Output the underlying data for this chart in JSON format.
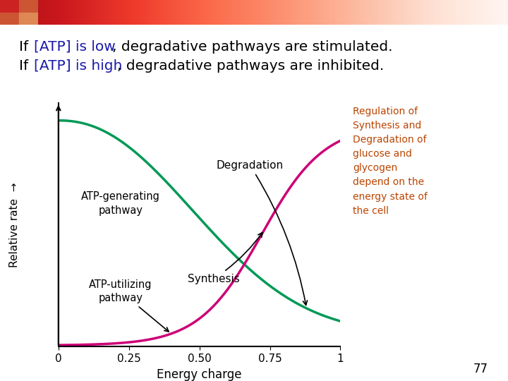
{
  "xlabel": "Energy charge",
  "degradation_color": "#009955",
  "synthesis_color": "#cc0077",
  "xticks": [
    0,
    0.25,
    0.5,
    0.75,
    1
  ],
  "xtick_labels": [
    "0",
    "0.25",
    "0.50",
    "0.75",
    "1"
  ],
  "annotation_color": "#bb4400",
  "annotation_text": "Regulation of\nSynthesis and\nDegradation of\nglucose and\nglycogen\ndepend on the\nenergy state of\nthe cell",
  "slide_number": "77",
  "background_color": "#ffffff",
  "atp_generating_label": "ATP-generating\npathway",
  "atp_utilizing_label": "ATP-utilizing\npathway",
  "degradation_label": "Degradation",
  "synthesis_label": "Synthesis",
  "text_color_black": "#000000",
  "text_color_blue": "#1a1aaa",
  "header_sq_colors": [
    "#cc2222",
    "#cc5533",
    "#cc5533",
    "#dd8855"
  ]
}
